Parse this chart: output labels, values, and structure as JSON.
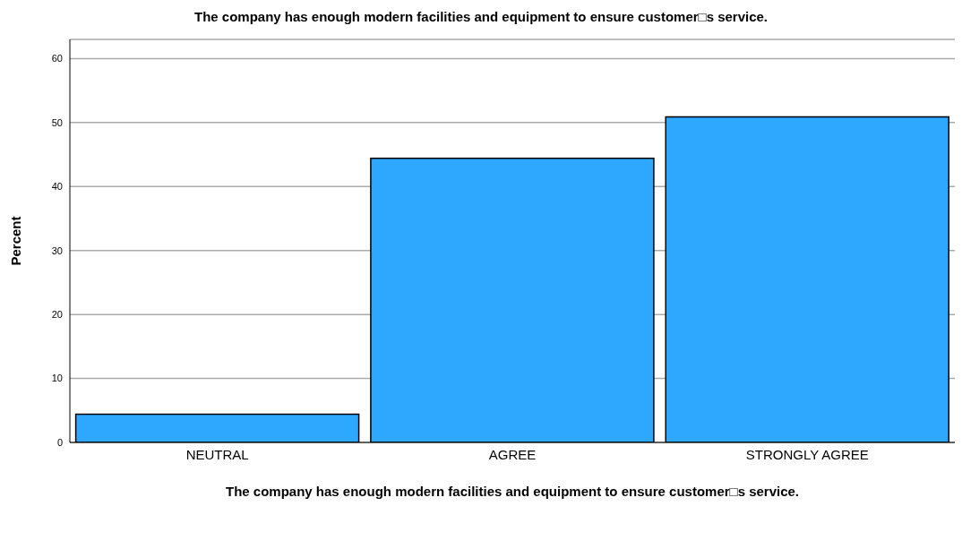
{
  "chart_data": {
    "type": "bar",
    "title": "The company has enough modern facilities and equipment to ensure customer□s service.",
    "xlabel": "The company has enough modern facilities and equipment to ensure customer□s service.",
    "ylabel": "Percent",
    "categories": [
      "NEUTRAL",
      "AGREE",
      "STRONGLY AGREE"
    ],
    "values": [
      4.4,
      44.4,
      50.9
    ],
    "color": "#2ea8ff",
    "ylim": [
      0,
      63
    ],
    "yticks": [
      0,
      10,
      20,
      30,
      40,
      50,
      60
    ],
    "grid": "y"
  }
}
